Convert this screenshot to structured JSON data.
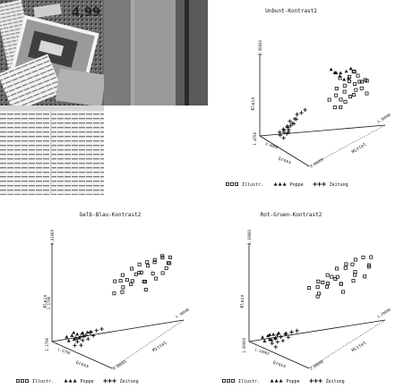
{
  "photo": {
    "icon": "newspaper-collage-photo",
    "text": "4,99"
  },
  "chart_data": [
    {
      "type": "scatter",
      "projection": "3d",
      "title": "Unbunt-Kontrast2",
      "zlabel": "Klein",
      "xlabel": "Gross",
      "ylabel": "Mittel",
      "ticks": {
        "z_top": "2.56000",
        "z_mid": "",
        "z_bottom": "1.4706",
        "x_left": "0.0000",
        "x_right": "3.49999",
        "y_right": "3.30000"
      },
      "legend": [
        {
          "marker": "square",
          "label": "Illustr."
        },
        {
          "marker": "triangle",
          "label": "Poppe"
        },
        {
          "marker": "plus",
          "label": "Zeitung"
        }
      ],
      "series": [
        {
          "name": "Illustr.",
          "marker": "square",
          "points": [
            [
              0.62,
              0.72,
              0.88
            ],
            [
              0.7,
              0.8,
              0.92
            ],
            [
              0.66,
              0.76,
              0.8
            ],
            [
              0.78,
              0.82,
              0.86
            ],
            [
              0.74,
              0.7,
              0.76
            ],
            [
              0.82,
              0.86,
              0.9
            ],
            [
              0.68,
              0.62,
              0.7
            ],
            [
              0.76,
              0.88,
              0.95
            ],
            [
              0.86,
              0.78,
              0.82
            ],
            [
              0.72,
              0.66,
              0.66
            ],
            [
              0.8,
              0.74,
              0.72
            ],
            [
              0.88,
              0.9,
              0.94
            ],
            [
              0.64,
              0.84,
              0.84
            ],
            [
              0.9,
              0.72,
              0.78
            ],
            [
              0.6,
              0.58,
              0.62
            ],
            [
              0.84,
              0.64,
              0.68
            ],
            [
              0.78,
              0.92,
              0.88
            ],
            [
              0.7,
              0.86,
              0.98
            ],
            [
              0.92,
              0.82,
              0.86
            ],
            [
              0.58,
              0.7,
              0.74
            ],
            [
              0.74,
              0.56,
              0.58
            ],
            [
              0.86,
              0.94,
              0.92
            ],
            [
              0.66,
              0.9,
              0.96
            ],
            [
              0.94,
              0.88,
              0.8
            ],
            [
              0.8,
              0.6,
              0.6
            ]
          ]
        },
        {
          "name": "Poppe",
          "marker": "triangle",
          "points": [
            [
              0.3,
              0.82,
              0.86
            ],
            [
              0.36,
              0.84,
              0.84
            ],
            [
              0.42,
              0.86,
              0.82
            ],
            [
              0.48,
              0.88,
              0.8
            ],
            [
              0.54,
              0.9,
              0.84
            ],
            [
              0.52,
              0.8,
              0.9
            ],
            [
              0.58,
              0.84,
              0.94
            ],
            [
              0.46,
              0.78,
              0.88
            ],
            [
              0.4,
              0.8,
              0.86
            ],
            [
              0.56,
              0.92,
              0.96
            ]
          ]
        },
        {
          "name": "Zeitung",
          "marker": "plus",
          "points": [
            [
              0.18,
              0.16,
              0.1
            ],
            [
              0.2,
              0.2,
              0.14
            ],
            [
              0.22,
              0.24,
              0.18
            ],
            [
              0.24,
              0.18,
              0.12
            ],
            [
              0.26,
              0.26,
              0.2
            ],
            [
              0.2,
              0.26,
              0.16
            ],
            [
              0.28,
              0.22,
              0.16
            ],
            [
              0.24,
              0.3,
              0.22
            ],
            [
              0.3,
              0.28,
              0.24
            ],
            [
              0.22,
              0.14,
              0.08
            ],
            [
              0.26,
              0.32,
              0.28
            ],
            [
              0.32,
              0.3,
              0.3
            ],
            [
              0.18,
              0.22,
              0.12
            ],
            [
              0.28,
              0.34,
              0.34
            ],
            [
              0.34,
              0.36,
              0.38
            ],
            [
              0.3,
              0.2,
              0.14
            ],
            [
              0.24,
              0.22,
              0.1
            ],
            [
              0.26,
              0.16,
              0.06
            ],
            [
              0.36,
              0.4,
              0.42
            ],
            [
              0.22,
              0.28,
              0.24
            ]
          ]
        }
      ]
    },
    {
      "type": "scatter",
      "projection": "3d",
      "title": "Gelb-Blau-Kontrast2",
      "zlabel": "Klein",
      "xlabel": "Gross",
      "ylabel": "Mittel",
      "ticks": {
        "z_top": "0.01069",
        "z_mid": "1.1796",
        "z_bottom": "1.1796",
        "x_left": "1.3796",
        "x_right": "0.00003",
        "y_right": "1.38048"
      },
      "legend": [
        {
          "marker": "square",
          "label": "Illustr."
        },
        {
          "marker": "triangle",
          "label": "Poppe"
        },
        {
          "marker": "plus",
          "label": "Zeitung"
        }
      ],
      "series": [
        {
          "name": "Illustr.",
          "marker": "square",
          "points": [
            [
              0.3,
              0.62,
              0.62
            ],
            [
              0.38,
              0.66,
              0.7
            ],
            [
              0.46,
              0.72,
              0.78
            ],
            [
              0.54,
              0.76,
              0.84
            ],
            [
              0.62,
              0.8,
              0.88
            ],
            [
              0.7,
              0.84,
              0.92
            ],
            [
              0.78,
              0.88,
              0.96
            ],
            [
              0.86,
              0.92,
              0.98
            ],
            [
              0.34,
              0.7,
              0.56
            ],
            [
              0.42,
              0.6,
              0.66
            ],
            [
              0.5,
              0.82,
              0.74
            ],
            [
              0.58,
              0.68,
              0.76
            ],
            [
              0.66,
              0.74,
              0.7
            ],
            [
              0.74,
              0.78,
              0.8
            ],
            [
              0.82,
              0.9,
              0.86
            ],
            [
              0.9,
              0.86,
              0.94
            ],
            [
              0.4,
              0.76,
              0.6
            ],
            [
              0.48,
              0.64,
              0.68
            ],
            [
              0.56,
              0.86,
              0.82
            ],
            [
              0.64,
              0.58,
              0.72
            ],
            [
              0.72,
              0.7,
              0.64
            ],
            [
              0.8,
              0.96,
              0.9
            ],
            [
              0.88,
              0.8,
              0.84
            ],
            [
              0.36,
              0.56,
              0.52
            ],
            [
              0.6,
              0.92,
              0.86
            ],
            [
              0.76,
              0.64,
              0.74
            ],
            [
              0.84,
              0.74,
              0.78
            ],
            [
              0.52,
              0.54,
              0.58
            ],
            [
              0.44,
              0.84,
              0.72
            ],
            [
              0.68,
              0.96,
              0.94
            ]
          ]
        },
        {
          "name": "Poppe",
          "marker": "triangle",
          "points": [
            [
              0.1,
              0.12,
              0.06
            ],
            [
              0.14,
              0.16,
              0.08
            ],
            [
              0.18,
              0.2,
              0.1
            ],
            [
              0.22,
              0.24,
              0.12
            ],
            [
              0.16,
              0.1,
              0.04
            ],
            [
              0.2,
              0.14,
              0.06
            ],
            [
              0.24,
              0.18,
              0.08
            ],
            [
              0.12,
              0.2,
              0.1
            ],
            [
              0.26,
              0.22,
              0.1
            ],
            [
              0.28,
              0.26,
              0.14
            ]
          ]
        },
        {
          "name": "Zeitung",
          "marker": "plus",
          "points": [
            [
              0.22,
              0.14,
              0.08
            ],
            [
              0.26,
              0.18,
              0.1
            ],
            [
              0.3,
              0.22,
              0.12
            ],
            [
              0.34,
              0.26,
              0.16
            ],
            [
              0.28,
              0.12,
              0.06
            ],
            [
              0.32,
              0.16,
              0.08
            ],
            [
              0.36,
              0.2,
              0.1
            ],
            [
              0.24,
              0.22,
              0.12
            ],
            [
              0.38,
              0.3,
              0.18
            ],
            [
              0.3,
              0.28,
              0.14
            ],
            [
              0.2,
              0.18,
              0.06
            ],
            [
              0.34,
              0.12,
              0.04
            ],
            [
              0.4,
              0.24,
              0.14
            ],
            [
              0.26,
              0.1,
              0.02
            ],
            [
              0.42,
              0.34,
              0.2
            ]
          ]
        }
      ]
    },
    {
      "type": "scatter",
      "projection": "3d",
      "title": "Rot-Gruen-Kontrast2",
      "zlabel": "Klein",
      "xlabel": "Gross",
      "ylabel": "Mittel",
      "ticks": {
        "z_top": "2.19900",
        "z_mid": "",
        "z_bottom": "1.00000",
        "x_left": "1.19002",
        "x_right": "2.00000",
        "y_right": "3.29090"
      },
      "legend": [
        {
          "marker": "square",
          "label": "Illustr."
        },
        {
          "marker": "triangle",
          "label": "Poppe"
        },
        {
          "marker": "plus",
          "label": "Zeitung"
        }
      ],
      "series": [
        {
          "name": "Illustr.",
          "marker": "square",
          "points": [
            [
              0.3,
              0.56,
              0.56
            ],
            [
              0.38,
              0.62,
              0.64
            ],
            [
              0.46,
              0.68,
              0.72
            ],
            [
              0.54,
              0.74,
              0.8
            ],
            [
              0.62,
              0.8,
              0.86
            ],
            [
              0.7,
              0.86,
              0.92
            ],
            [
              0.78,
              0.9,
              0.96
            ],
            [
              0.86,
              0.94,
              0.98
            ],
            [
              0.34,
              0.66,
              0.5
            ],
            [
              0.42,
              0.58,
              0.6
            ],
            [
              0.5,
              0.78,
              0.7
            ],
            [
              0.58,
              0.64,
              0.74
            ],
            [
              0.66,
              0.7,
              0.68
            ],
            [
              0.74,
              0.82,
              0.78
            ],
            [
              0.82,
              0.76,
              0.84
            ],
            [
              0.9,
              0.88,
              0.9
            ],
            [
              0.4,
              0.72,
              0.58
            ],
            [
              0.48,
              0.6,
              0.66
            ],
            [
              0.56,
              0.84,
              0.8
            ],
            [
              0.64,
              0.54,
              0.7
            ],
            [
              0.72,
              0.68,
              0.62
            ],
            [
              0.8,
              0.96,
              0.88
            ],
            [
              0.88,
              0.84,
              0.8
            ],
            [
              0.6,
              0.9,
              0.84
            ],
            [
              0.76,
              0.62,
              0.72
            ],
            [
              0.84,
              0.72,
              0.76
            ],
            [
              0.52,
              0.5,
              0.54
            ],
            [
              0.44,
              0.8,
              0.66
            ]
          ]
        },
        {
          "name": "Poppe",
          "marker": "triangle",
          "points": [
            [
              0.1,
              0.1,
              0.06
            ],
            [
              0.14,
              0.14,
              0.08
            ],
            [
              0.18,
              0.18,
              0.1
            ],
            [
              0.22,
              0.22,
              0.12
            ],
            [
              0.16,
              0.08,
              0.04
            ],
            [
              0.2,
              0.12,
              0.06
            ],
            [
              0.12,
              0.18,
              0.08
            ],
            [
              0.24,
              0.16,
              0.08
            ]
          ]
        },
        {
          "name": "Zeitung",
          "marker": "plus",
          "points": [
            [
              0.2,
              0.12,
              0.06
            ],
            [
              0.24,
              0.16,
              0.08
            ],
            [
              0.28,
              0.2,
              0.1
            ],
            [
              0.32,
              0.24,
              0.14
            ],
            [
              0.26,
              0.1,
              0.04
            ],
            [
              0.3,
              0.14,
              0.06
            ],
            [
              0.34,
              0.18,
              0.08
            ],
            [
              0.22,
              0.2,
              0.1
            ],
            [
              0.36,
              0.28,
              0.16
            ],
            [
              0.28,
              0.26,
              0.12
            ],
            [
              0.18,
              0.16,
              0.04
            ],
            [
              0.32,
              0.1,
              0.02
            ],
            [
              0.38,
              0.22,
              0.12
            ],
            [
              0.4,
              0.32,
              0.18
            ]
          ]
        }
      ]
    }
  ]
}
